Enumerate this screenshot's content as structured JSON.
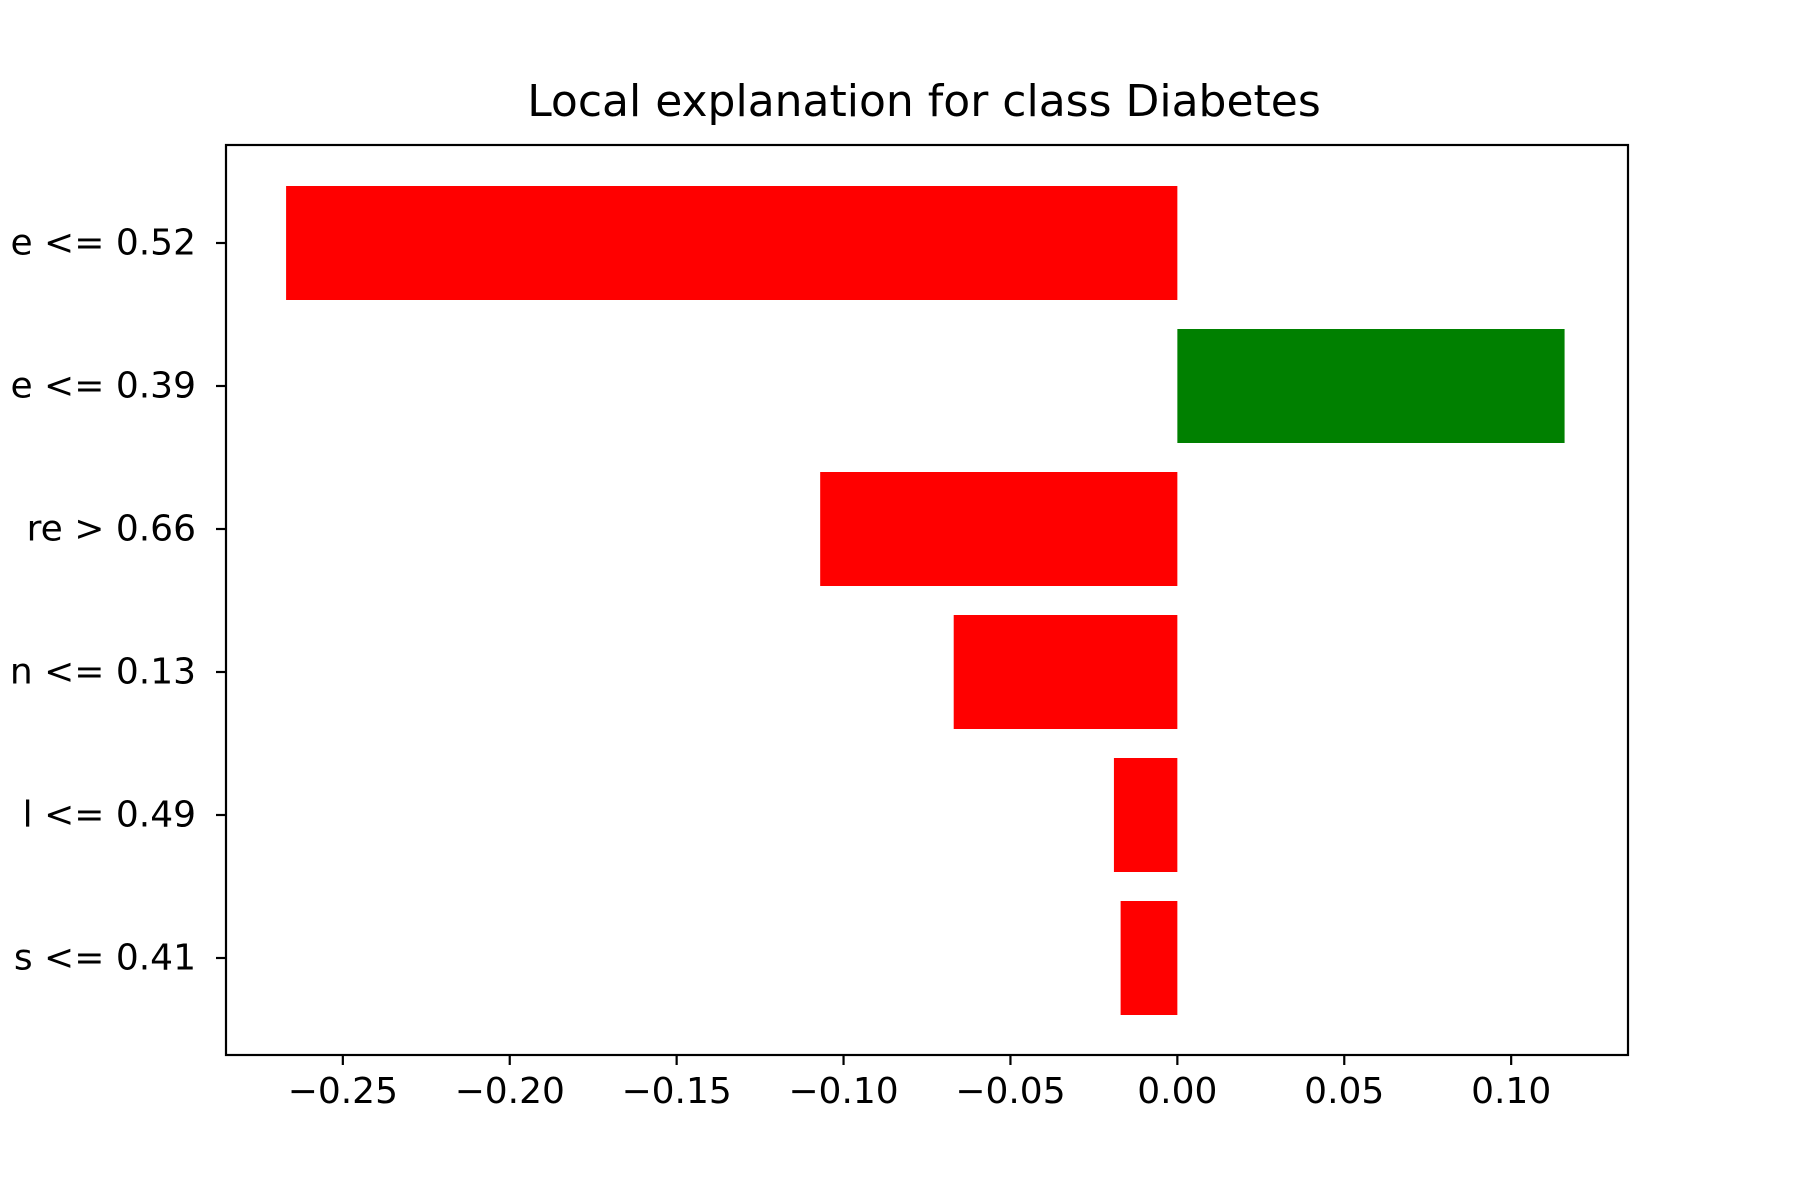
{
  "chart_data": {
    "type": "bar",
    "orientation": "horizontal",
    "title": "Local explanation for class Diabetes",
    "categories": [
      "e <= 0.52",
      "e <= 0.39",
      "re > 0.66",
      "n <= 0.13",
      "l <= 0.49",
      "s <= 0.41"
    ],
    "values": [
      -0.267,
      0.116,
      -0.107,
      -0.067,
      -0.019,
      -0.017
    ],
    "xlim": [
      -0.285,
      0.135
    ],
    "xticks": [
      -0.25,
      -0.2,
      -0.15,
      -0.1,
      -0.05,
      0.0,
      0.05,
      0.1
    ],
    "xtick_labels": [
      "−0.25",
      "−0.20",
      "−0.15",
      "−0.10",
      "−0.05",
      "0.00",
      "0.05",
      "0.10"
    ],
    "xlabel": "",
    "ylabel": "",
    "grid": false,
    "colors": {
      "positive": "#008000",
      "negative": "#ff0000",
      "axes": "#000000",
      "background": "#ffffff"
    }
  }
}
